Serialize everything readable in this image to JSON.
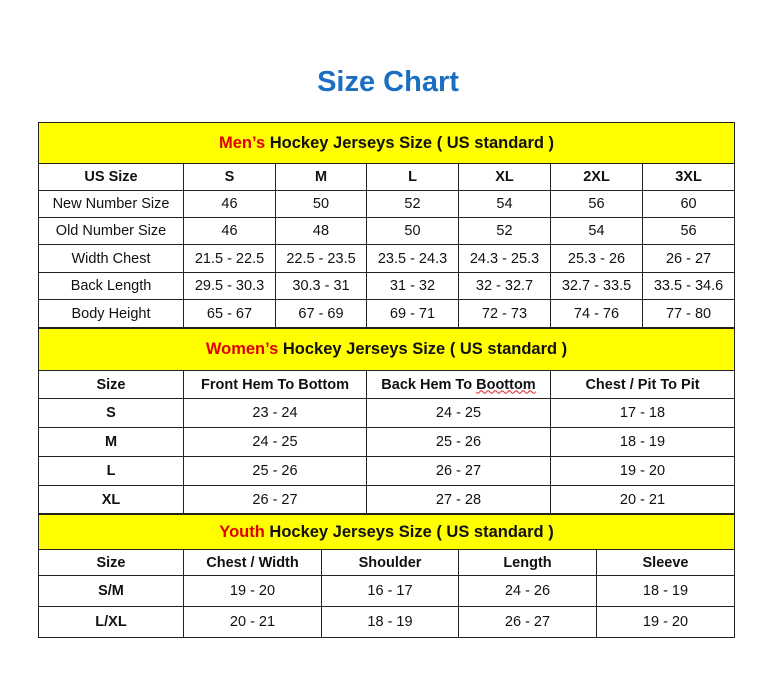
{
  "title": "Size Chart",
  "sections": [
    {
      "id": "men",
      "highlight": "Men’s",
      "heading": " Hockey Jerseys Size ( US standard )",
      "columns": [
        "US Size",
        "S",
        "M",
        "L",
        "XL",
        "2XL",
        "3XL"
      ],
      "rows": [
        [
          "New Number Size",
          "46",
          "50",
          "52",
          "54",
          "56",
          "60"
        ],
        [
          "Old Number Size",
          "46",
          "48",
          "50",
          "52",
          "54",
          "56"
        ],
        [
          "Width Chest",
          "21.5 - 22.5",
          "22.5 - 23.5",
          "23.5 - 24.3",
          "24.3 - 25.3",
          "25.3 - 26",
          "26 - 27"
        ],
        [
          "Back Length",
          "29.5 - 30.3",
          "30.3 - 31",
          "31 - 32",
          "32 - 32.7",
          "32.7 - 33.5",
          "33.5 - 34.6"
        ],
        [
          "Body Height",
          "65 - 67",
          "67 - 69",
          "69 - 71",
          "72 - 73",
          "74 - 76",
          "77 - 80"
        ]
      ]
    },
    {
      "id": "women",
      "highlight": "Women’s",
      "heading": " Hockey Jerseys Size ( US standard )",
      "columns": [
        "Size",
        "Front Hem To Bottom",
        "Back Hem To Boottom",
        "Chest / Pit To Pit"
      ],
      "rows": [
        [
          "S",
          "23 - 24",
          "24 - 25",
          "17 - 18"
        ],
        [
          "M",
          "24 - 25",
          "25 - 26",
          "18 - 19"
        ],
        [
          "L",
          "25 - 26",
          "26 - 27",
          "19 - 20"
        ],
        [
          "XL",
          "26 - 27",
          "27 - 28",
          "20 - 21"
        ]
      ]
    },
    {
      "id": "youth",
      "highlight": "Youth",
      "heading": " Hockey Jerseys Size ( US standard )",
      "columns": [
        "Size",
        "Chest / Width",
        "Shoulder",
        "Length",
        "Sleeve"
      ],
      "rows": [
        [
          "S/M",
          "19 - 20",
          "16 - 17",
          "24 - 26",
          "18 - 19"
        ],
        [
          "L/XL",
          "20 - 21",
          "18 - 19",
          "26 - 27",
          "19 - 20"
        ]
      ]
    }
  ],
  "colors": {
    "title": "#1a6fc0",
    "band": "#ffff00",
    "highlight": "#e00000"
  }
}
